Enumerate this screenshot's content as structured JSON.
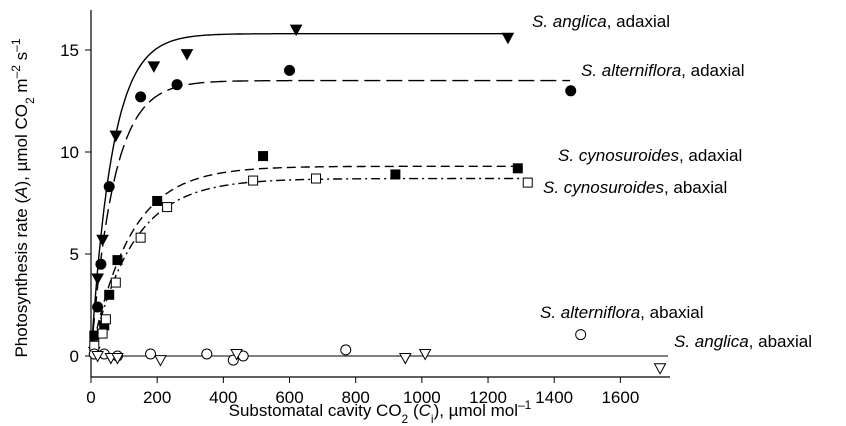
{
  "chart_data": {
    "type": "scatter",
    "xlabel": {
      "pre": "Substomatal cavity CO",
      "sub": "2",
      "mid": " (",
      "var": "C",
      "varsub": "i",
      "post": "), µmol mol",
      "sup": "–1"
    },
    "ylabel": {
      "pre": "Photosynthesis rate (",
      "var": "A",
      "mid": "), µmol CO",
      "sub": "2",
      "mid2": " m",
      "sup1": "–2",
      "mid3": " s",
      "sup2": "–1"
    },
    "xlim": [
      0,
      1750
    ],
    "ylim": [
      0,
      17
    ],
    "x_ticks": [
      0,
      200,
      400,
      600,
      800,
      1000,
      1200,
      1400,
      1600
    ],
    "y_ticks": [
      0,
      5,
      10,
      15
    ],
    "series": [
      {
        "name": "S. anglica, adaxial",
        "species": "S. anglica",
        "surface": ", adaxial",
        "marker": "triangle-down",
        "filled": true,
        "line": "solid",
        "asymptote": 15.8,
        "k": 0.0155,
        "points": [
          [
            10,
            0.2
          ],
          [
            20,
            3.8
          ],
          [
            35,
            5.7
          ],
          [
            75,
            10.8
          ],
          [
            190,
            14.2
          ],
          [
            290,
            14.8
          ],
          [
            620,
            16.0
          ],
          [
            1260,
            15.6
          ]
        ]
      },
      {
        "name": "S. alterniflora, adaxial",
        "species": "S. alterniflora",
        "surface": ", adaxial",
        "marker": "circle",
        "filled": true,
        "line": "long-dash",
        "asymptote": 13.5,
        "k": 0.0145,
        "points": [
          [
            10,
            0.1
          ],
          [
            20,
            2.4
          ],
          [
            30,
            4.5
          ],
          [
            55,
            8.3
          ],
          [
            150,
            12.7
          ],
          [
            260,
            13.3
          ],
          [
            600,
            14.0
          ],
          [
            1450,
            13.0
          ]
        ]
      },
      {
        "name": "S. cynosuroides, adaxial",
        "species": "S. cynosuroides",
        "surface": ", adaxial",
        "marker": "square",
        "filled": true,
        "line": "dash",
        "asymptote": 9.3,
        "k": 0.0085,
        "points": [
          [
            10,
            1.0
          ],
          [
            40,
            1.5
          ],
          [
            55,
            3.0
          ],
          [
            80,
            4.7
          ],
          [
            200,
            7.6
          ],
          [
            520,
            9.8
          ],
          [
            920,
            8.9
          ],
          [
            1290,
            9.2
          ]
        ]
      },
      {
        "name": "S. cynosuroides, abaxial",
        "species": "S. cynosuroides",
        "surface": ", abaxial",
        "marker": "square",
        "filled": false,
        "line": "dash-dot",
        "asymptote": 8.7,
        "k": 0.008,
        "points": [
          [
            10,
            0.5
          ],
          [
            35,
            1.1
          ],
          [
            45,
            1.8
          ],
          [
            75,
            3.6
          ],
          [
            150,
            5.8
          ],
          [
            230,
            7.3
          ],
          [
            490,
            8.6
          ],
          [
            680,
            8.7
          ],
          [
            1320,
            8.5
          ]
        ]
      },
      {
        "name": "S. alterniflora, abaxial",
        "species": "S. alterniflora",
        "surface": ", abaxial",
        "marker": "circle",
        "filled": false,
        "line": "none",
        "points": [
          [
            10,
            0.1
          ],
          [
            40,
            0.1
          ],
          [
            80,
            0.0
          ],
          [
            180,
            0.1
          ],
          [
            350,
            0.1
          ],
          [
            430,
            -0.2
          ],
          [
            460,
            0.0
          ],
          [
            770,
            0.3
          ],
          [
            1480,
            1.05
          ]
        ]
      },
      {
        "name": "S. anglica, abaxial",
        "species": "S. anglica",
        "surface": ", abaxial",
        "marker": "triangle-down",
        "filled": false,
        "line": "none",
        "points": [
          [
            20,
            0.0
          ],
          [
            60,
            -0.1
          ],
          [
            80,
            -0.1
          ],
          [
            210,
            -0.2
          ],
          [
            440,
            0.1
          ],
          [
            950,
            -0.1
          ],
          [
            1010,
            0.1
          ],
          [
            1720,
            -0.6
          ]
        ]
      }
    ]
  }
}
